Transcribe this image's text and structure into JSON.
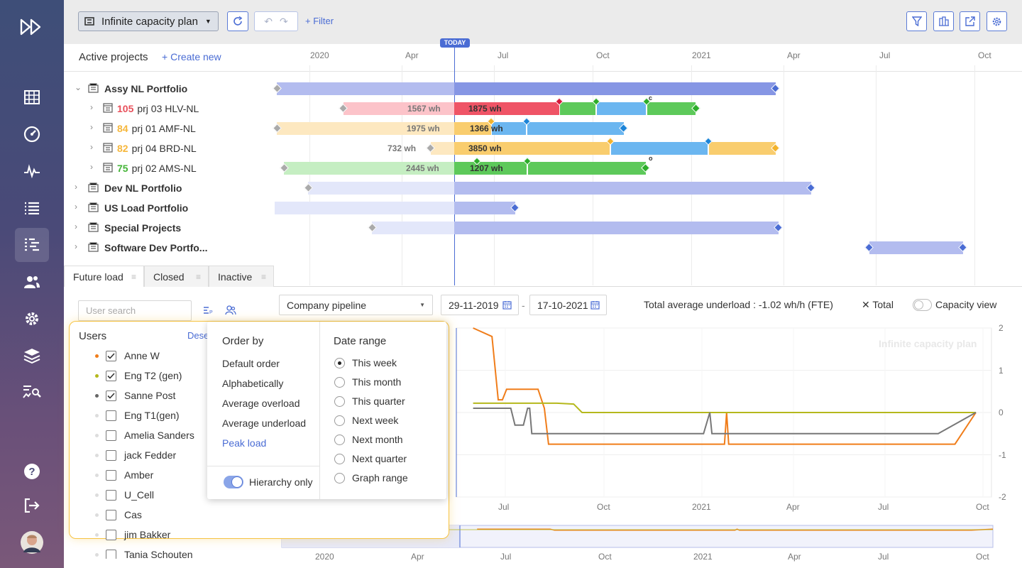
{
  "toolbar": {
    "plan_label": "Infinite capacity plan",
    "filter_label": "Filter"
  },
  "projects": {
    "title": "Active projects",
    "create_label": "Create new",
    "today_label": "TODAY",
    "months": [
      "2020",
      "Apr",
      "Jul",
      "Oct",
      "2021",
      "Apr",
      "Jul",
      "Oct"
    ],
    "rows": [
      {
        "name": "Assy NL Portfolio",
        "type": "portfolio",
        "expanded": true
      },
      {
        "name": "prj 03 HLV-NL",
        "type": "project",
        "priority": "105",
        "priority_color": "#e8505b",
        "wh_before": "1567 wh",
        "wh_after": "1875 wh"
      },
      {
        "name": "prj 01 AMF-NL",
        "type": "project",
        "priority": "84",
        "priority_color": "#f6b73c",
        "wh_before": "1975 wh",
        "wh_after": "1366 wh"
      },
      {
        "name": "prj 04 BRD-NL",
        "type": "project",
        "priority": "82",
        "priority_color": "#f6b73c",
        "wh_before": "732 wh",
        "wh_after": "3850 wh"
      },
      {
        "name": "prj 02 AMS-NL",
        "type": "project",
        "priority": "75",
        "priority_color": "#44b437",
        "wh_before": "2445 wh",
        "wh_after": "1207 wh"
      },
      {
        "name": "Dev NL Portfolio",
        "type": "portfolio"
      },
      {
        "name": "US Load Portfolio",
        "type": "portfolio"
      },
      {
        "name": "Special Projects",
        "type": "portfolio"
      },
      {
        "name": "Software Dev Portfo...",
        "type": "portfolio"
      }
    ],
    "marker_c": "c",
    "marker_o": "o"
  },
  "tabs": [
    {
      "label": "Future load",
      "active": true
    },
    {
      "label": "Closed"
    },
    {
      "label": "Inactive"
    }
  ],
  "load": {
    "user_search_placeholder": "User search",
    "pipeline": "Company pipeline",
    "date_from": "29-11-2019",
    "date_sep": "-",
    "date_to": "17-10-2021",
    "underload": "Total average underload : -1.02 wh/h (FTE)",
    "total_label": "Total",
    "capacity_label": "Capacity view",
    "watermark": "Infinite capacity plan"
  },
  "users_panel": {
    "title": "Users",
    "deselect": "Dese",
    "users": [
      {
        "name": "Anne W",
        "checked": true,
        "color": "#f07d1a"
      },
      {
        "name": "Eng T2 (gen)",
        "checked": true,
        "color": "#b5b81c"
      },
      {
        "name": "Sanne Post",
        "checked": true,
        "color": "#666666"
      },
      {
        "name": "Eng T1(gen)",
        "checked": false,
        "color": "#dddddd"
      },
      {
        "name": "Amelia Sanders",
        "checked": false,
        "color": "#dddddd"
      },
      {
        "name": "jack Fedder",
        "checked": false,
        "color": "#dddddd"
      },
      {
        "name": "Amber",
        "checked": false,
        "color": "#dddddd"
      },
      {
        "name": "U_Cell",
        "checked": false,
        "color": "#dddddd"
      },
      {
        "name": "Cas",
        "checked": false,
        "color": "#dddddd"
      },
      {
        "name": "jim Bakker",
        "checked": false,
        "color": "#dddddd"
      },
      {
        "name": "Tania Schouten",
        "checked": false,
        "color": "#dddddd"
      }
    ]
  },
  "order_menu": {
    "title": "Order by",
    "options": [
      "Default order",
      "Alphabetically",
      "Average overload",
      "Average underload",
      "Peak load"
    ],
    "active": "Peak load",
    "hierarchy_label": "Hierarchy only"
  },
  "date_range_menu": {
    "title": "Date range",
    "options": [
      "This week",
      "This month",
      "This quarter",
      "Next week",
      "Next month",
      "Next quarter",
      "Graph range"
    ],
    "selected": "This week"
  },
  "chart_data": {
    "type": "line",
    "x_ticks": [
      "2020",
      "Apr",
      "Jul",
      "Oct",
      "2021",
      "Apr",
      "Jul",
      "Oct"
    ],
    "y_ticks": [
      "2",
      "1",
      "0",
      "-1",
      "-2"
    ],
    "ylim": [
      -2,
      2
    ],
    "series": [
      {
        "color": "#f07d1a",
        "x": [
          0.0,
          0.3,
          0.35,
          0.4,
          0.85,
          1.0,
          1.1,
          1.2,
          1.6,
          1.95,
          2.1,
          2.2,
          2.3,
          2.4,
          2.5,
          5.5,
          5.9,
          6.2,
          6.4,
          6.45,
          6.5,
          7.5,
          8.6,
          8.7,
          8.8,
          9.1,
          9.3,
          9.35,
          9.4,
          11.9,
          12.4
        ],
        "y": [
          null,
          null,
          null,
          2.0,
          1.8,
          0.3,
          0.3,
          0.55,
          0.55,
          0.55,
          0.1,
          -0.75,
          -0.75,
          -0.75,
          -0.75,
          -0.75,
          -0.75,
          -0.75,
          -0.75,
          0.0,
          -0.75,
          -0.75,
          -0.75,
          -0.75,
          -0.75,
          -0.75,
          -0.75,
          -0.75,
          -0.75,
          -0.75,
          0.0
        ]
      },
      {
        "color": "#b5b81c",
        "x": [
          0.0,
          0.4,
          0.85,
          1.0,
          1.9,
          2.4,
          2.8,
          3.0,
          4.0,
          9.0,
          12.4
        ],
        "y": [
          null,
          0.22,
          0.22,
          0.22,
          0.22,
          0.22,
          0.2,
          0.0,
          0.0,
          0.0,
          0.0
        ]
      },
      {
        "color": "#777777",
        "x": [
          0.0,
          0.4,
          0.9,
          1.3,
          1.4,
          1.6,
          1.7,
          1.75,
          1.8,
          2.0,
          5.5,
          5.9,
          6.05,
          6.1,
          6.2,
          7.5,
          11.5,
          12.4
        ],
        "y": [
          null,
          0.1,
          0.1,
          0.1,
          -0.3,
          -0.3,
          0.1,
          0.1,
          -0.5,
          -0.5,
          -0.5,
          -0.5,
          0.0,
          -0.5,
          -0.5,
          -0.5,
          -0.5,
          0.0
        ]
      }
    ]
  }
}
